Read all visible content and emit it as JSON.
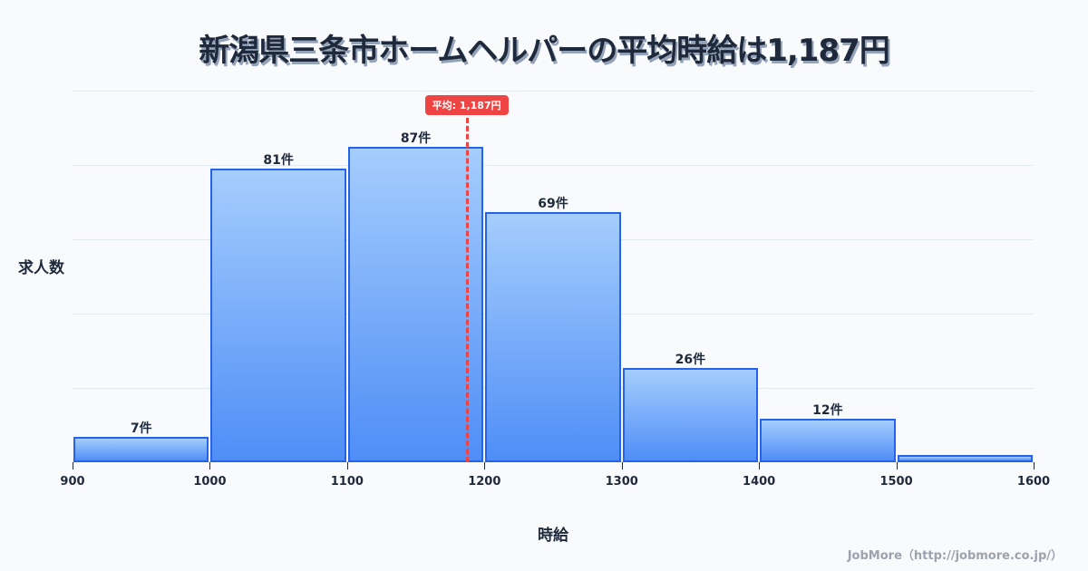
{
  "title": "新潟県三条市ホームヘルパーの平均時給は1,187円",
  "credit": "JobMore（http://jobmore.co.jp/）",
  "colors": {
    "bar_fill_top": "#a5cdfd",
    "bar_fill_bottom": "#4f8ef7",
    "bar_border": "#2563eb",
    "mean_line": "#ef4444",
    "text": "#1e293b",
    "background": "#f8fafc"
  },
  "mean_badge": "平均: 1,187円",
  "chart_data": {
    "type": "bar",
    "subtype": "histogram",
    "title": "新潟県三条市ホームヘルパーの平均時給は1,187円",
    "xlabel": "時給",
    "ylabel": "求人数",
    "bins": [
      {
        "from": 900,
        "to": 1000,
        "count": 7,
        "label": "7件"
      },
      {
        "from": 1000,
        "to": 1100,
        "count": 81,
        "label": "81件"
      },
      {
        "from": 1100,
        "to": 1200,
        "count": 87,
        "label": "87件"
      },
      {
        "from": 1200,
        "to": 1300,
        "count": 69,
        "label": "69件"
      },
      {
        "from": 1300,
        "to": 1400,
        "count": 26,
        "label": "26件"
      },
      {
        "from": 1400,
        "to": 1500,
        "count": 12,
        "label": "12件"
      },
      {
        "from": 1500,
        "to": 1600,
        "count": 2,
        "label": ""
      }
    ],
    "categories": [
      "900-1000",
      "1000-1100",
      "1100-1200",
      "1200-1300",
      "1300-1400",
      "1400-1500",
      "1500-1600"
    ],
    "values": [
      7,
      81,
      87,
      69,
      26,
      12,
      2
    ],
    "x_ticks": [
      "900",
      "1000",
      "1100",
      "1200",
      "1300",
      "1400",
      "1500",
      "1600"
    ],
    "xlim": [
      900,
      1600
    ],
    "ylim": [
      0,
      102.5
    ],
    "grid": true,
    "annotations": [
      {
        "type": "vline",
        "x": 1187,
        "label": "平均: 1,187円",
        "style": "dashed",
        "color": "#ef4444"
      }
    ]
  }
}
